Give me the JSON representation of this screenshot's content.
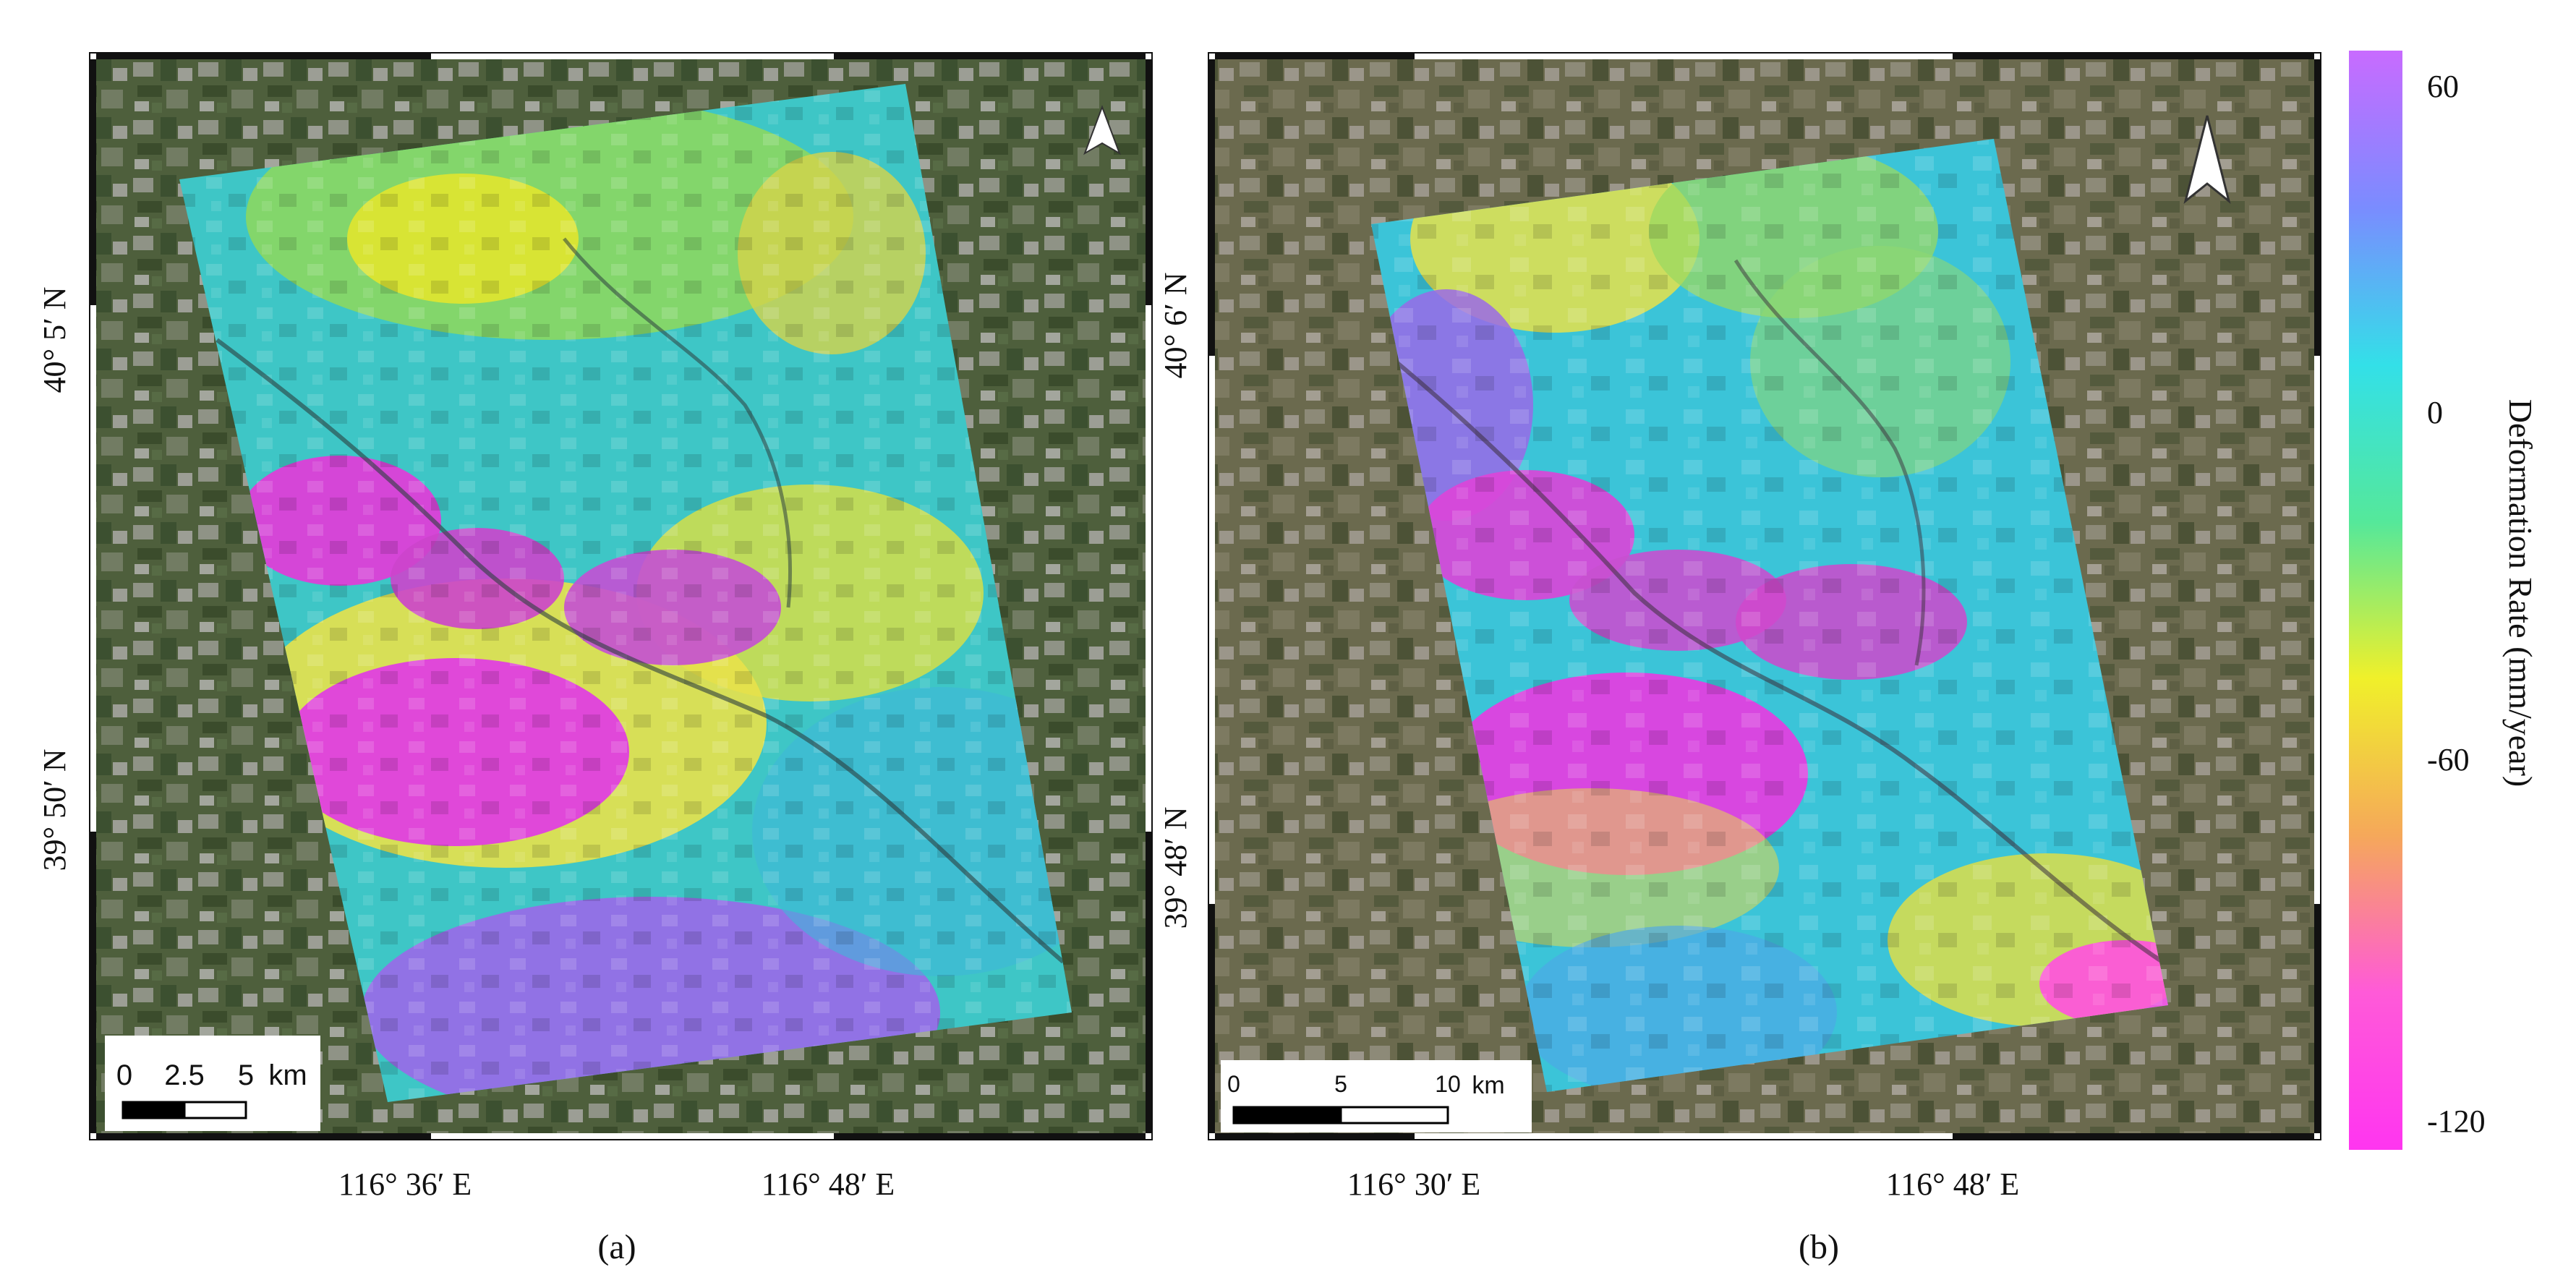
{
  "panels": [
    {
      "id": "a",
      "caption": "(a)",
      "lat_labels": [
        "40°  5′ N",
        "39°  50′ N"
      ],
      "lon_labels": [
        "116° 36′ E",
        "116° 48′ E"
      ],
      "scale_bar": {
        "ticks": [
          "0",
          "2.5",
          "5"
        ],
        "unit": "km"
      }
    },
    {
      "id": "b",
      "caption": "(b)",
      "lat_labels": [
        "40°  6′ N",
        "39°  48′ N"
      ],
      "lon_labels": [
        "116° 30′ E",
        "116° 48′ E"
      ],
      "scale_bar": {
        "ticks": [
          "0",
          "5",
          "10"
        ],
        "unit": "km"
      }
    }
  ],
  "colorbar": {
    "title": "Deformation Rate (mm/year)",
    "tick_labels": [
      "60",
      "0",
      "-60",
      "-120"
    ],
    "colors": [
      "#c86bff",
      "#7a8cff",
      "#33e0e8",
      "#55e89a",
      "#f0f02a",
      "#f5a85a",
      "#ff5ad8",
      "#ff35f0"
    ]
  },
  "icons": {
    "north_arrow": "north-arrow-icon"
  }
}
